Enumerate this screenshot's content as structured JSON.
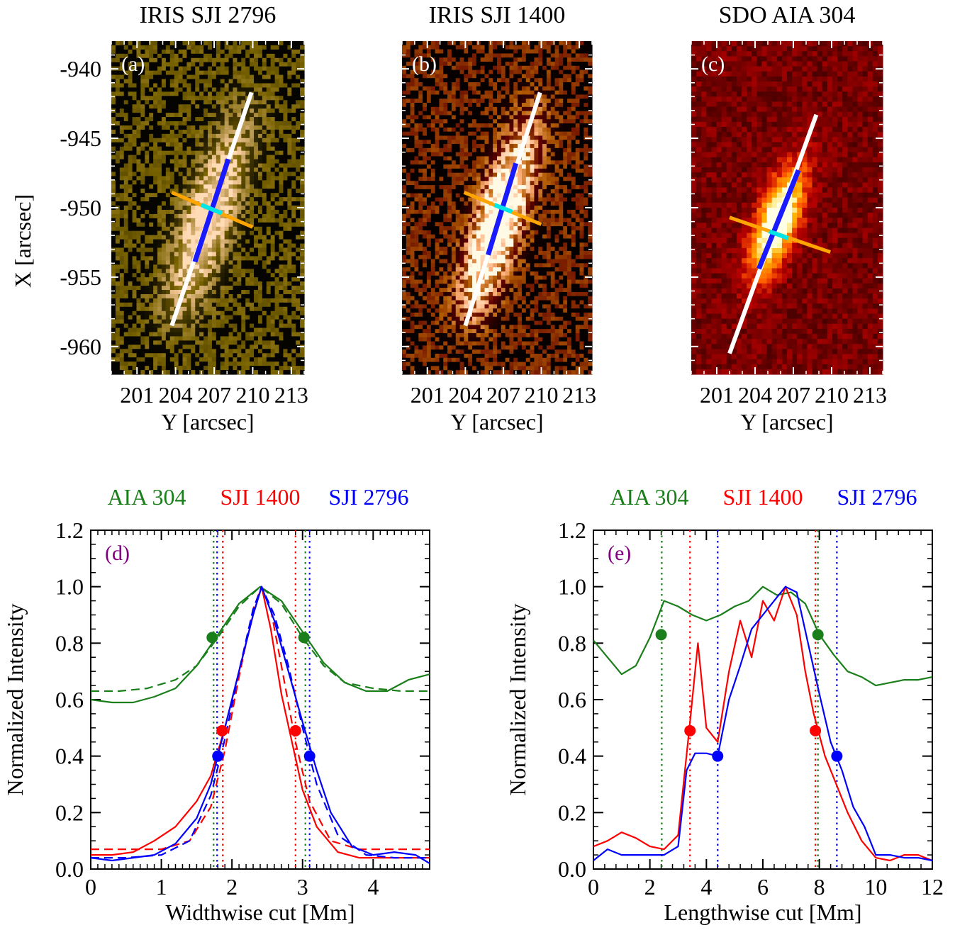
{
  "colors": {
    "aia": "#1a7f1a",
    "sji1400": "#ff0000",
    "sji2796": "#0000ff",
    "panel_label": "#800080",
    "cut_lengthwise": "#ffffff",
    "cut_lengthwise_core": "#1a1aff",
    "cut_widthwise": "#ffa500",
    "cut_widthwise_core": "#00e5e5"
  },
  "chart_data": [
    {
      "type": "heatmap",
      "panel": "(a)",
      "title": "IRIS SJI 2796",
      "colormap": "gold",
      "xlabel": "Y [arcsec]",
      "ylabel": "X [arcsec]",
      "xlim": [
        199,
        214
      ],
      "ylim": [
        -962,
        -938
      ],
      "xticks": [
        "201",
        "204",
        "207",
        "210",
        "213"
      ],
      "yticks": [
        "-940",
        "-945",
        "-950",
        "-955",
        "-960"
      ],
      "lengthwise_cut": {
        "start": [
          203.7,
          -958.5
        ],
        "end": [
          209.9,
          -941.7
        ],
        "core_start": [
          205.5,
          -953.9
        ],
        "core_end": [
          208.1,
          -946.5
        ]
      },
      "widthwise_cut": {
        "start": [
          203.7,
          -948.9
        ],
        "end": [
          210.0,
          -951.4
        ],
        "core_start": [
          206.0,
          -949.8
        ],
        "core_end": [
          207.6,
          -950.4
        ]
      }
    },
    {
      "type": "heatmap",
      "panel": "(b)",
      "title": "IRIS SJI 1400",
      "colormap": "red",
      "xlabel": "Y [arcsec]",
      "ylabel": "",
      "xlim": [
        199,
        214
      ],
      "ylim": [
        -962,
        -938
      ],
      "xticks": [
        "201",
        "204",
        "207",
        "210",
        "213"
      ],
      "yticks": [],
      "lengthwise_cut": {
        "start": [
          204.0,
          -958.5
        ],
        "end": [
          209.9,
          -941.7
        ],
        "core_start": [
          205.8,
          -953.4
        ],
        "core_end": [
          208.0,
          -946.8
        ]
      },
      "widthwise_cut": {
        "start": [
          203.9,
          -948.9
        ],
        "end": [
          210.0,
          -951.2
        ],
        "core_start": [
          206.3,
          -949.8
        ],
        "core_end": [
          207.7,
          -950.3
        ]
      }
    },
    {
      "type": "heatmap",
      "panel": "(c)",
      "title": "SDO AIA 304",
      "colormap": "hot",
      "xlabel": "Y [arcsec]",
      "ylabel": "",
      "xlim": [
        199,
        214
      ],
      "ylim": [
        -962,
        -938
      ],
      "xticks": [
        "201",
        "204",
        "207",
        "210",
        "213"
      ],
      "yticks": [],
      "lengthwise_cut": {
        "start": [
          202.0,
          -960.5
        ],
        "end": [
          208.8,
          -943.3
        ],
        "core_start": [
          204.3,
          -954.4
        ],
        "core_end": [
          207.4,
          -947.3
        ]
      },
      "widthwise_cut": {
        "start": [
          202.0,
          -950.7
        ],
        "end": [
          209.9,
          -953.2
        ],
        "core_start": [
          205.1,
          -951.7
        ],
        "core_end": [
          206.6,
          -952.2
        ]
      }
    },
    {
      "type": "line",
      "panel": "(d)",
      "legend": [
        "AIA 304",
        "SJI 1400",
        "SJI 2796"
      ],
      "xlabel": "Widthwise cut [Mm]",
      "ylabel": "Normalized Intensity",
      "xlim": [
        0,
        4.8
      ],
      "ylim": [
        0,
        1.2
      ],
      "xticks": [
        "0",
        "1",
        "2",
        "3",
        "4"
      ],
      "yticks": [
        "0.0",
        "0.2",
        "0.4",
        "0.6",
        "0.8",
        "1.0",
        "1.2"
      ],
      "series": [
        {
          "name": "AIA 304",
          "color_key": "aia",
          "style": "solid",
          "x": [
            0,
            0.3,
            0.6,
            0.9,
            1.2,
            1.5,
            1.8,
            2.1,
            2.4,
            2.7,
            3.0,
            3.3,
            3.6,
            3.9,
            4.2,
            4.5,
            4.8
          ],
          "y": [
            0.6,
            0.59,
            0.59,
            0.61,
            0.64,
            0.72,
            0.83,
            0.94,
            1.0,
            0.95,
            0.84,
            0.73,
            0.66,
            0.63,
            0.63,
            0.67,
            0.69
          ]
        },
        {
          "name": "AIA 304 fit",
          "color_key": "aia",
          "style": "dashed",
          "x": [
            0,
            0.4,
            0.8,
            1.2,
            1.5,
            1.8,
            2.1,
            2.4,
            2.7,
            3.0,
            3.3,
            3.6,
            4.0,
            4.4,
            4.8
          ],
          "y": [
            0.63,
            0.63,
            0.64,
            0.67,
            0.72,
            0.82,
            0.93,
            1.0,
            0.94,
            0.82,
            0.72,
            0.66,
            0.64,
            0.63,
            0.63
          ]
        },
        {
          "name": "SJI 1400",
          "color_key": "sji1400",
          "style": "solid",
          "x": [
            0,
            0.3,
            0.6,
            0.9,
            1.2,
            1.5,
            1.7,
            1.9,
            2.1,
            2.3,
            2.42,
            2.55,
            2.7,
            2.85,
            3.0,
            3.2,
            3.5,
            3.8,
            4.1,
            4.4,
            4.8
          ],
          "y": [
            0.05,
            0.05,
            0.06,
            0.1,
            0.15,
            0.24,
            0.33,
            0.5,
            0.7,
            0.9,
            1.0,
            0.85,
            0.62,
            0.45,
            0.28,
            0.15,
            0.06,
            0.04,
            0.04,
            0.04,
            0.04
          ]
        },
        {
          "name": "SJI 1400 fit",
          "color_key": "sji1400",
          "style": "dashed",
          "x": [
            0,
            0.5,
            1.0,
            1.4,
            1.7,
            1.9,
            2.1,
            2.3,
            2.42,
            2.55,
            2.7,
            2.9,
            3.1,
            3.4,
            3.8,
            4.2,
            4.8
          ],
          "y": [
            0.07,
            0.07,
            0.07,
            0.1,
            0.22,
            0.42,
            0.68,
            0.92,
            1.0,
            0.92,
            0.72,
            0.45,
            0.24,
            0.1,
            0.07,
            0.07,
            0.07
          ]
        },
        {
          "name": "SJI 2796",
          "color_key": "sji2796",
          "style": "solid",
          "x": [
            0,
            0.3,
            0.6,
            0.9,
            1.2,
            1.5,
            1.7,
            1.9,
            2.1,
            2.3,
            2.42,
            2.6,
            2.8,
            3.0,
            3.2,
            3.4,
            3.7,
            4.0,
            4.3,
            4.6,
            4.8
          ],
          "y": [
            0.04,
            0.03,
            0.04,
            0.05,
            0.09,
            0.18,
            0.3,
            0.5,
            0.7,
            0.9,
            1.0,
            0.88,
            0.7,
            0.52,
            0.35,
            0.2,
            0.08,
            0.05,
            0.06,
            0.05,
            0.02
          ]
        },
        {
          "name": "SJI 2796 fit",
          "color_key": "sji2796",
          "style": "dashed",
          "x": [
            0,
            0.5,
            1.0,
            1.4,
            1.7,
            1.9,
            2.1,
            2.3,
            2.42,
            2.6,
            2.8,
            3.0,
            3.2,
            3.5,
            3.9,
            4.3,
            4.8
          ],
          "y": [
            0.04,
            0.04,
            0.05,
            0.1,
            0.26,
            0.46,
            0.7,
            0.92,
            1.0,
            0.9,
            0.72,
            0.5,
            0.3,
            0.12,
            0.05,
            0.04,
            0.04
          ]
        }
      ],
      "markers": [
        {
          "color_key": "aia",
          "x": 1.72,
          "y": 0.82
        },
        {
          "color_key": "aia",
          "x": 3.02,
          "y": 0.82
        },
        {
          "color_key": "sji1400",
          "x": 1.86,
          "y": 0.49
        },
        {
          "color_key": "sji1400",
          "x": 2.9,
          "y": 0.49
        },
        {
          "color_key": "sji2796",
          "x": 1.8,
          "y": 0.4
        },
        {
          "color_key": "sji2796",
          "x": 3.1,
          "y": 0.4
        }
      ],
      "vlines": [
        {
          "color_key": "aia",
          "x": 1.74
        },
        {
          "color_key": "aia",
          "x": 3.04
        },
        {
          "color_key": "sji1400",
          "x": 1.87
        },
        {
          "color_key": "sji1400",
          "x": 2.9
        },
        {
          "color_key": "sji2796",
          "x": 1.79
        },
        {
          "color_key": "sji2796",
          "x": 3.1
        }
      ]
    },
    {
      "type": "line",
      "panel": "(e)",
      "legend": [
        "AIA 304",
        "SJI 1400",
        "SJI 2796"
      ],
      "xlabel": "Lengthwise cut [Mm]",
      "ylabel": "Normalized Intensity",
      "xlim": [
        0,
        12
      ],
      "ylim": [
        0,
        1.2
      ],
      "xticks": [
        "0",
        "2",
        "4",
        "6",
        "8",
        "10",
        "12"
      ],
      "yticks": [
        "0.0",
        "0.2",
        "0.4",
        "0.6",
        "0.8",
        "1.0",
        "1.2"
      ],
      "series": [
        {
          "name": "AIA 304",
          "color_key": "aia",
          "style": "solid",
          "x": [
            0,
            0.5,
            1.0,
            1.5,
            2.0,
            2.5,
            3.0,
            3.5,
            4.0,
            4.5,
            5.0,
            5.5,
            6.0,
            6.5,
            7.0,
            7.5,
            8.0,
            8.5,
            9.0,
            9.5,
            10.0,
            10.5,
            11.0,
            11.5,
            12.0
          ],
          "y": [
            0.81,
            0.75,
            0.69,
            0.72,
            0.82,
            0.95,
            0.93,
            0.9,
            0.88,
            0.9,
            0.93,
            0.95,
            1.0,
            0.97,
            0.98,
            0.94,
            0.83,
            0.76,
            0.7,
            0.68,
            0.65,
            0.66,
            0.67,
            0.67,
            0.68
          ]
        },
        {
          "name": "SJI 1400",
          "color_key": "sji1400",
          "style": "solid",
          "x": [
            0,
            0.5,
            1.0,
            1.5,
            2.0,
            2.5,
            3.0,
            3.4,
            3.7,
            4.0,
            4.4,
            4.8,
            5.2,
            5.6,
            6.0,
            6.4,
            6.8,
            7.2,
            7.5,
            7.8,
            8.2,
            8.6,
            9.0,
            9.5,
            10.0,
            10.5,
            11.0,
            11.5,
            12.0
          ],
          "y": [
            0.08,
            0.1,
            0.13,
            0.11,
            0.08,
            0.07,
            0.12,
            0.5,
            0.8,
            0.5,
            0.45,
            0.7,
            0.88,
            0.75,
            0.95,
            0.88,
            1.0,
            0.9,
            0.7,
            0.55,
            0.4,
            0.3,
            0.2,
            0.1,
            0.04,
            0.03,
            0.05,
            0.05,
            0.03
          ]
        },
        {
          "name": "SJI 2796",
          "color_key": "sji2796",
          "style": "solid",
          "x": [
            0,
            0.5,
            1.0,
            1.5,
            2.0,
            2.5,
            3.0,
            3.3,
            3.6,
            4.0,
            4.4,
            4.8,
            5.2,
            5.6,
            6.0,
            6.4,
            6.8,
            7.2,
            7.6,
            8.0,
            8.4,
            8.8,
            9.2,
            9.6,
            10.0,
            10.5,
            11.0,
            11.5,
            12.0
          ],
          "y": [
            0.03,
            0.07,
            0.05,
            0.05,
            0.05,
            0.05,
            0.08,
            0.35,
            0.41,
            0.41,
            0.4,
            0.6,
            0.72,
            0.85,
            0.9,
            0.95,
            1.0,
            0.98,
            0.8,
            0.62,
            0.45,
            0.35,
            0.22,
            0.15,
            0.05,
            0.05,
            0.04,
            0.04,
            0.03
          ]
        }
      ],
      "markers": [
        {
          "color_key": "aia",
          "x": 2.4,
          "y": 0.83
        },
        {
          "color_key": "aia",
          "x": 7.95,
          "y": 0.83
        },
        {
          "color_key": "sji1400",
          "x": 3.42,
          "y": 0.49
        },
        {
          "color_key": "sji1400",
          "x": 7.86,
          "y": 0.49
        },
        {
          "color_key": "sji2796",
          "x": 4.4,
          "y": 0.4
        },
        {
          "color_key": "sji2796",
          "x": 8.62,
          "y": 0.4
        }
      ],
      "vlines": [
        {
          "color_key": "aia",
          "x": 2.42
        },
        {
          "color_key": "aia",
          "x": 7.95
        },
        {
          "color_key": "sji1400",
          "x": 3.42
        },
        {
          "color_key": "sji1400",
          "x": 7.86
        },
        {
          "color_key": "sji2796",
          "x": 4.4
        },
        {
          "color_key": "sji2796",
          "x": 8.62
        }
      ]
    }
  ]
}
